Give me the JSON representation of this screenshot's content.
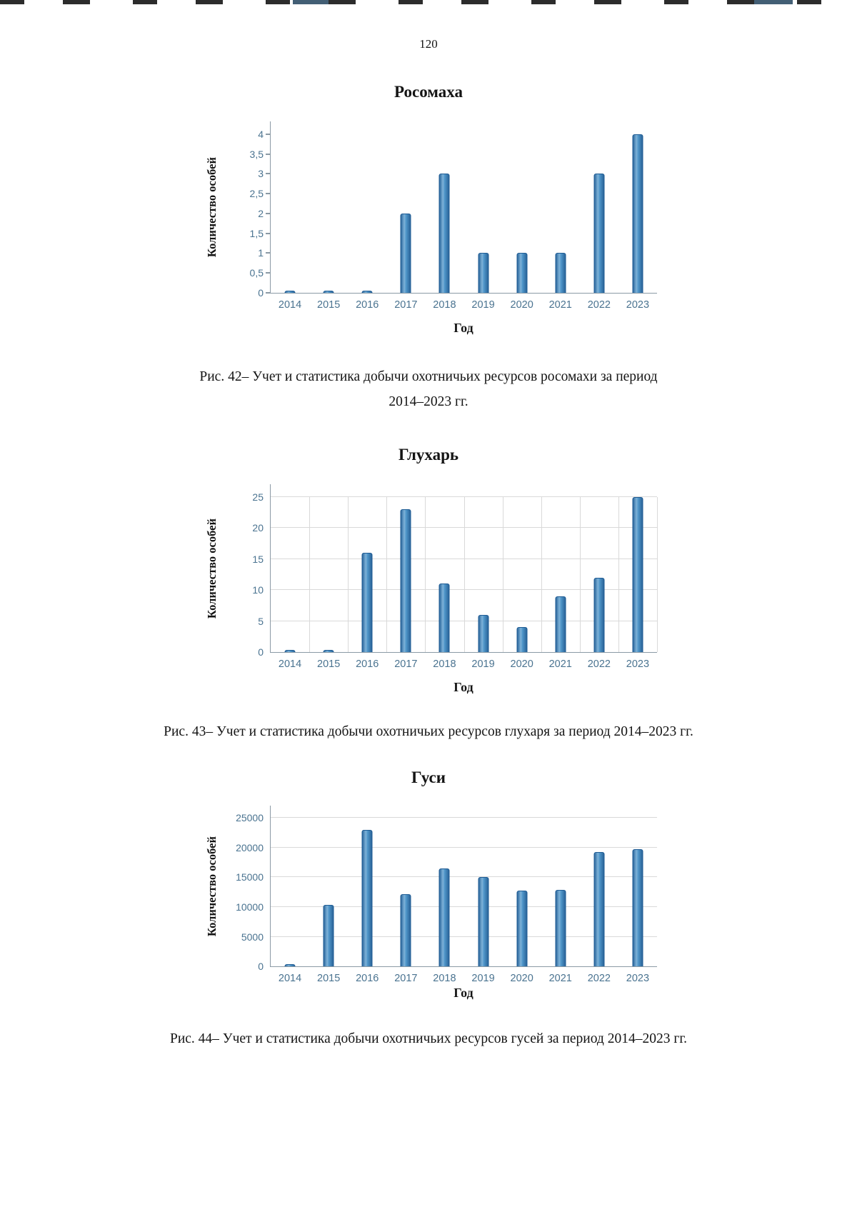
{
  "page": {
    "number": "120"
  },
  "colors": {
    "bar_fill": "#3b8ac4",
    "bar_border": "#1f5c94",
    "tick_label": "#4a7390",
    "gridline": "#d9d9d9",
    "axis_line": "#8b9aa5"
  },
  "figures": [
    {
      "caption": [
        "Рис. 42– Учет и статистика добычи охотничьих ресурсов росомахи за период",
        "2014–2023 гг."
      ]
    },
    {
      "caption": [
        "Рис. 43– Учет и статистика добычи охотничьих ресурсов глухаря за период 2014–2023 гг."
      ]
    },
    {
      "caption": [
        "Рис. 44– Учет и статистика добычи охотничьих ресурсов гусей за период 2014–2023 гг."
      ]
    }
  ],
  "chart_data": [
    {
      "type": "bar",
      "title": "Росомаха",
      "ylabel": "Количество особей",
      "xlabel": "Год",
      "categories": [
        "2014",
        "2015",
        "2016",
        "2017",
        "2018",
        "2019",
        "2020",
        "2021",
        "2022",
        "2023"
      ],
      "values": [
        0,
        0,
        0,
        2,
        3,
        1,
        1,
        1,
        3,
        4
      ],
      "yticks": [
        [
          "0",
          0
        ],
        [
          "0,5",
          0.5
        ],
        [
          "1",
          1
        ],
        [
          "1,5",
          1.5
        ],
        [
          "2",
          2
        ],
        [
          "2,5",
          2.5
        ],
        [
          "3",
          3
        ],
        [
          "3,5",
          3.5
        ],
        [
          "4",
          4
        ]
      ],
      "ylim": [
        0,
        4
      ],
      "grid": {
        "horizontal": false,
        "vertical": false
      },
      "tickmarks": true,
      "legend": "none"
    },
    {
      "type": "bar",
      "title": "Глухарь",
      "ylabel": "Количество особей",
      "xlabel": "Год",
      "categories": [
        "2014",
        "2015",
        "2016",
        "2017",
        "2018",
        "2019",
        "2020",
        "2021",
        "2022",
        "2023"
      ],
      "values": [
        0,
        0,
        16,
        23,
        11,
        6,
        4,
        9,
        12,
        25
      ],
      "yticks": [
        [
          "0",
          0
        ],
        [
          "5",
          5
        ],
        [
          "10",
          10
        ],
        [
          "15",
          15
        ],
        [
          "20",
          20
        ],
        [
          "25",
          25
        ]
      ],
      "ylim": [
        0,
        25
      ],
      "grid": {
        "horizontal": true,
        "vertical": true
      },
      "tickmarks": false,
      "legend": "none"
    },
    {
      "type": "bar",
      "title": "Гуси",
      "ylabel": "Количество особей",
      "xlabel": "Год",
      "categories": [
        "2014",
        "2015",
        "2016",
        "2017",
        "2018",
        "2019",
        "2020",
        "2021",
        "2022",
        "2023"
      ],
      "values": [
        0,
        10300,
        23000,
        12200,
        16500,
        15000,
        12800,
        12900,
        19200,
        19700
      ],
      "yticks": [
        [
          "0",
          0
        ],
        [
          "5000",
          5000
        ],
        [
          "10000",
          10000
        ],
        [
          "15000",
          15000
        ],
        [
          "20000",
          20000
        ],
        [
          "25000",
          25000
        ]
      ],
      "ylim": [
        0,
        25000
      ],
      "grid": {
        "horizontal": true,
        "vertical": false
      },
      "tickmarks": false,
      "legend": "none"
    }
  ]
}
